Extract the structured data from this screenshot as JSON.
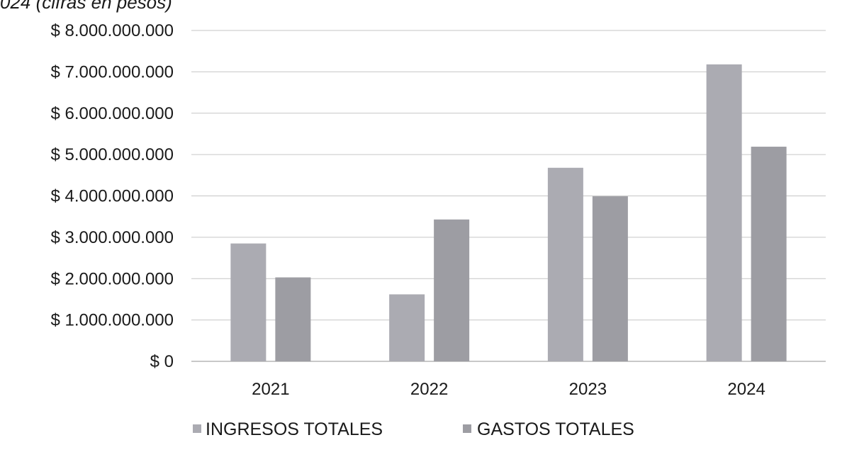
{
  "chart_data": {
    "type": "bar",
    "title": "024 (cifras en pesos)",
    "categories": [
      "2021",
      "2022",
      "2023",
      "2024"
    ],
    "series": [
      {
        "name": "INGRESOS TOTALES",
        "values": [
          2850000000,
          1620000000,
          4680000000,
          7180000000
        ]
      },
      {
        "name": "GASTOS TOTALES",
        "values": [
          2030000000,
          3430000000,
          3990000000,
          5190000000
        ]
      }
    ],
    "yticks": [
      {
        "value": 0,
        "label": "$ 0"
      },
      {
        "value": 1000000000,
        "label": "$ 1.000.000.000"
      },
      {
        "value": 2000000000,
        "label": "$ 2.000.000.000"
      },
      {
        "value": 3000000000,
        "label": "$ 3.000.000.000"
      },
      {
        "value": 4000000000,
        "label": "$ 4.000.000.000"
      },
      {
        "value": 5000000000,
        "label": "$ 5.000.000.000"
      },
      {
        "value": 6000000000,
        "label": "$ 6.000.000.000"
      },
      {
        "value": 7000000000,
        "label": "$ 7.000.000.000"
      },
      {
        "value": 8000000000,
        "label": "$ 8.000.000.000"
      }
    ],
    "ylim": [
      0,
      8000000000
    ],
    "grid": true,
    "legend": "bottom",
    "colors": {
      "INGRESOS TOTALES": "#ababb2",
      "GASTOS TOTALES": "#9d9da3",
      "grid": "#c6c6c6",
      "axis": "#b5b5b5"
    }
  }
}
